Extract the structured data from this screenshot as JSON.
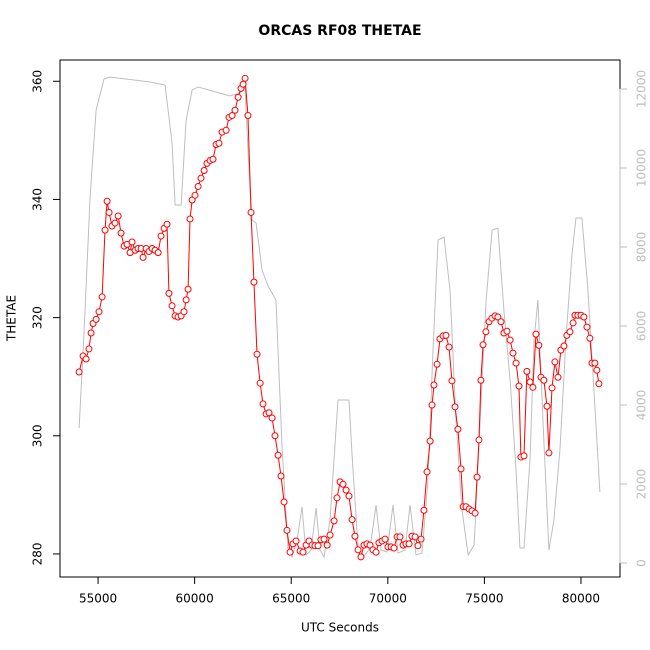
{
  "chart_data": {
    "type": "line",
    "title": "ORCAS RF08 THETAE",
    "xlabel": "UTC Seconds",
    "ylabel": "THETAE",
    "xlim": [
      53030,
      82020
    ],
    "ylim": [
      276.1,
      363.6
    ],
    "y2lim": [
      -354,
      12734
    ],
    "xticks": [
      55000,
      60000,
      65000,
      70000,
      75000,
      80000
    ],
    "yticks": [
      280,
      300,
      320,
      340,
      360
    ],
    "y2ticks": [
      0,
      2000,
      4000,
      6000,
      8000,
      10000,
      12000
    ],
    "y2_color": "#bebebe",
    "series": [
      {
        "color": "#bebebe",
        "axis": "y2",
        "marker": "none",
        "x": [
          54020,
          54280,
          54590,
          54900,
          55310,
          55620,
          57690,
          58470,
          58830,
          58990,
          59300,
          59560,
          59870,
          60180,
          61830,
          62350,
          62610,
          62760,
          62970,
          63180,
          63490,
          63800,
          64210,
          64520,
          64830,
          65040,
          65300,
          65560,
          65770,
          66030,
          66290,
          66490,
          66700,
          67010,
          67420,
          67990,
          68150,
          68460,
          68770,
          69080,
          69390,
          69650,
          69960,
          70270,
          70530,
          70890,
          71150,
          71460,
          71770,
          72080,
          72340,
          72600,
          72910,
          73220,
          73530,
          73840,
          74160,
          74470,
          74780,
          75090,
          75400,
          75700,
          76010,
          76330,
          76640,
          76840,
          77050,
          77360,
          77570,
          77770,
          78030,
          78340,
          78600,
          78910,
          79220,
          79530,
          79740,
          80050,
          80360,
          80670,
          80980
        ],
        "values": [
          3418,
          5899,
          9291,
          11468,
          12253,
          12304,
          12177,
          12101,
          10633,
          9063,
          9063,
          11215,
          11975,
          12051,
          11823,
          11899,
          12051,
          10456,
          8684,
          8608,
          7418,
          7013,
          6658,
          2987,
          380,
          152,
          582,
          1418,
          203,
          329,
          1392,
          329,
          152,
          1089,
          4127,
          4127,
          2734,
          380,
          177,
          380,
          1468,
          329,
          278,
          1468,
          253,
          329,
          1468,
          203,
          253,
          2101,
          5392,
          8177,
          8253,
          6911,
          3620,
          1342,
          203,
          456,
          3620,
          6658,
          8430,
          8481,
          6405,
          4633,
          2354,
          380,
          380,
          2608,
          5646,
          6658,
          3620,
          329,
          1089,
          2861,
          5646,
          7797,
          8734,
          8734,
          6911,
          4380,
          1797
        ]
      },
      {
        "color": "#ff0000",
        "marker": "circle",
        "x": [
          54020,
          54225,
          54380,
          54530,
          54640,
          54740,
          54900,
          55050,
          55210,
          55360,
          55470,
          55570,
          55720,
          55880,
          56040,
          56190,
          56350,
          56500,
          56660,
          56760,
          56920,
          57070,
          57230,
          57330,
          57490,
          57640,
          57800,
          57950,
          58110,
          58260,
          58420,
          58570,
          58670,
          58830,
          58990,
          59140,
          59300,
          59450,
          59560,
          59660,
          59760,
          59870,
          60020,
          60180,
          60330,
          60490,
          60640,
          60800,
          60950,
          61110,
          61260,
          61420,
          61630,
          61780,
          61940,
          62090,
          62250,
          62400,
          62510,
          62610,
          62760,
          62920,
          63070,
          63230,
          63390,
          63540,
          63700,
          63850,
          64010,
          64160,
          64320,
          64470,
          64630,
          64780,
          64940,
          65090,
          65250,
          65460,
          65610,
          65770,
          65920,
          66080,
          66230,
          66390,
          66540,
          66700,
          66860,
          67010,
          67220,
          67370,
          67530,
          67680,
          67840,
          67990,
          68150,
          68300,
          68460,
          68610,
          68770,
          68920,
          69080,
          69230,
          69390,
          69540,
          69700,
          69860,
          70010,
          70170,
          70320,
          70480,
          70630,
          70790,
          70940,
          71100,
          71250,
          71410,
          71560,
          71720,
          71870,
          72030,
          72190,
          72290,
          72390,
          72550,
          72700,
          72860,
          73010,
          73170,
          73320,
          73480,
          73630,
          73790,
          73900,
          74050,
          74210,
          74360,
          74520,
          74620,
          74720,
          74820,
          74930,
          75080,
          75240,
          75390,
          75550,
          75700,
          75860,
          76010,
          76170,
          76330,
          76480,
          76640,
          76790,
          76890,
          77050,
          77200,
          77360,
          77510,
          77670,
          77820,
          77930,
          78080,
          78240,
          78340,
          78500,
          78650,
          78810,
          78960,
          79120,
          79270,
          79430,
          79590,
          79690,
          79840,
          80000,
          80150,
          80310,
          80460,
          80570,
          80720,
          80820,
          80930
        ],
        "values": [
          310.8,
          313.5,
          313,
          314.7,
          317.4,
          319,
          319.7,
          321,
          323.5,
          334.8,
          339.7,
          337.8,
          335.5,
          336,
          337.2,
          334.3,
          332.1,
          332.4,
          331,
          332.8,
          331.4,
          331.7,
          331.7,
          330.2,
          331.7,
          331.2,
          331.7,
          331.4,
          331,
          333.8,
          335.1,
          335.8,
          324.1,
          322,
          320.3,
          320.1,
          320.3,
          321,
          323,
          324.8,
          336.7,
          339.9,
          340.7,
          342.2,
          343.6,
          344.9,
          346.1,
          346.6,
          346.8,
          349.3,
          349.5,
          351.4,
          351.7,
          353.9,
          354.2,
          355.1,
          357.3,
          358.8,
          359.5,
          360.5,
          354.2,
          337.8,
          326,
          313.8,
          308.9,
          305.4,
          303.7,
          303.9,
          303,
          300,
          296.7,
          293.2,
          288.8,
          284,
          280.3,
          281.7,
          282.2,
          280.5,
          280.3,
          281.5,
          282.2,
          281.5,
          281.4,
          281.4,
          282.4,
          282.5,
          281.5,
          283.2,
          285.6,
          289.5,
          292.2,
          291.8,
          290.8,
          289.8,
          285.8,
          283,
          280.7,
          279.5,
          281.5,
          281.7,
          281.5,
          280.7,
          280.3,
          281.9,
          282.2,
          282.5,
          281.2,
          281.2,
          281,
          282.9,
          282.9,
          281.5,
          281.7,
          281.7,
          283,
          282.9,
          281.4,
          282.5,
          287.4,
          293.9,
          299.1,
          305.2,
          308.6,
          312.1,
          316.4,
          316.9,
          317,
          315,
          309.3,
          304.9,
          301.1,
          294.4,
          288,
          288,
          287.6,
          287.3,
          286.9,
          293,
          299.3,
          309.4,
          315.4,
          317.6,
          319.3,
          319.9,
          320.3,
          320.1,
          319.3,
          317.4,
          317.7,
          316.2,
          314,
          312.3,
          308.4,
          296.4,
          296.6,
          310.9,
          309.1,
          308.2,
          317.2,
          315.3,
          309.9,
          309.4,
          305,
          297.1,
          308.1,
          312.5,
          309.9,
          314.5,
          315.2,
          317,
          317.6,
          319.1,
          320.4,
          320.4,
          320.4,
          320.1,
          318.4,
          316.5,
          312.3,
          312.3,
          311.1,
          308.8
        ]
      }
    ]
  }
}
